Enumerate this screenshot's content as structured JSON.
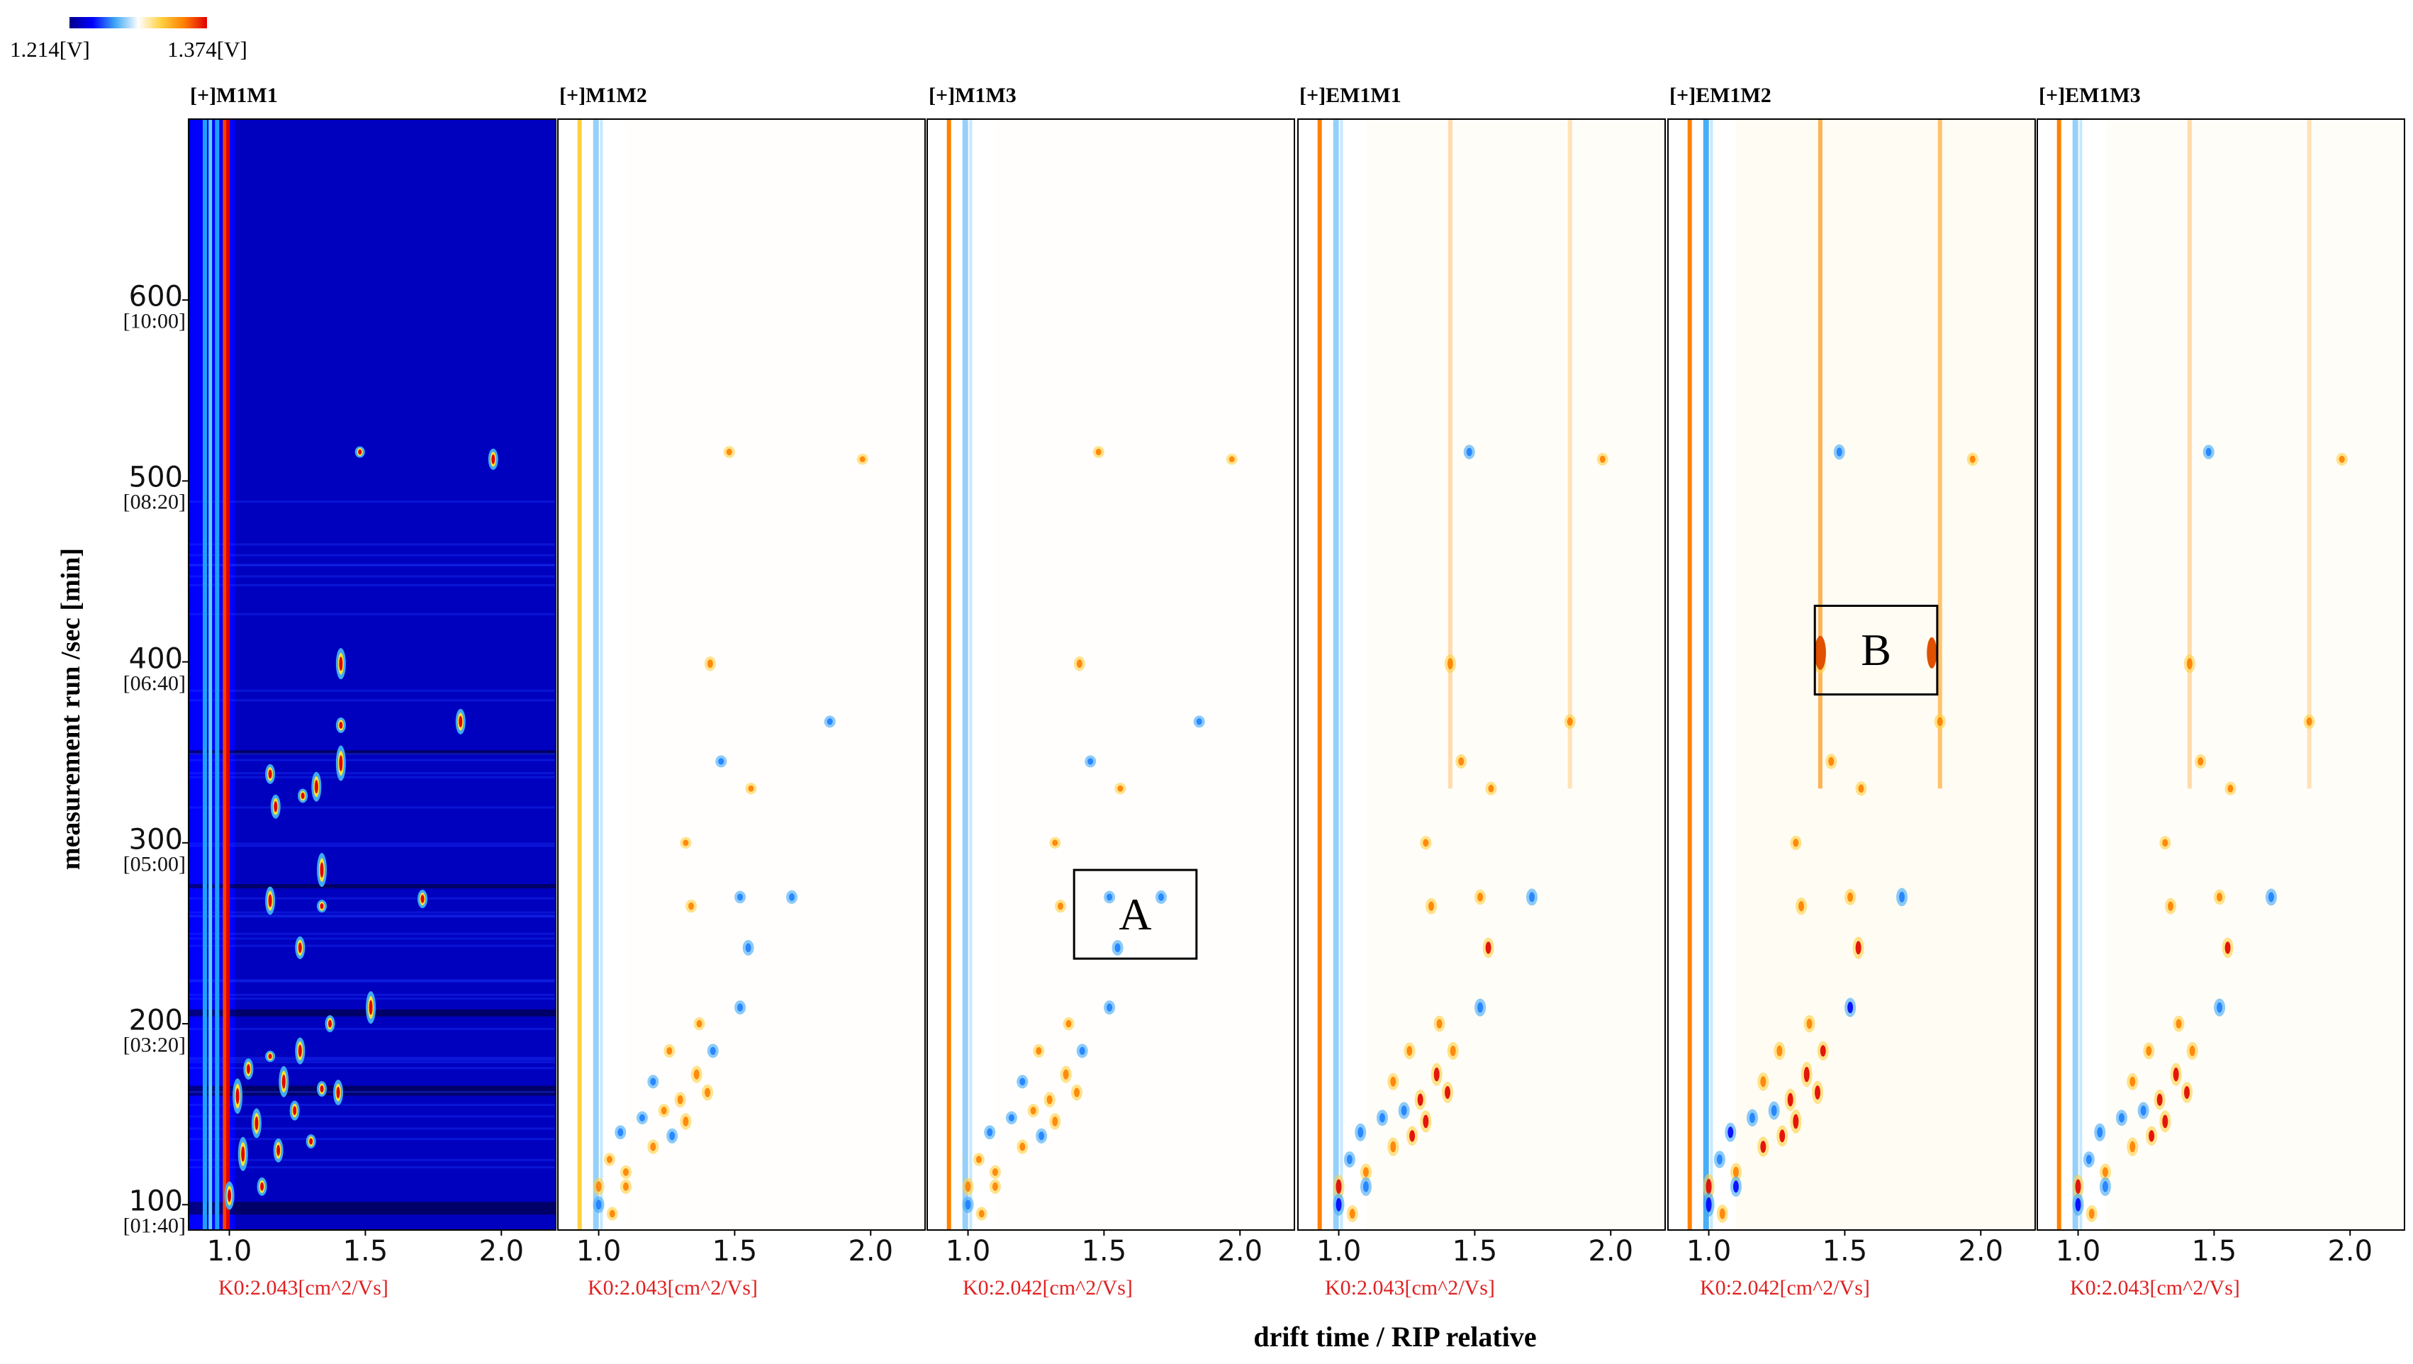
{
  "colorbar": {
    "min_label": "1.214[V]",
    "max_label": "1.374[V]",
    "colors": [
      "#00008b",
      "#0000ff",
      "#3fa9f5",
      "#ffffff",
      "#ffd040",
      "#ff8000",
      "#e00000"
    ]
  },
  "chart_data": {
    "type": "heatmap",
    "title": "",
    "xlabel": "drift time / RIP  relative",
    "ylabel": "measurement run /sec [min]",
    "xlim": [
      0.85,
      2.2
    ],
    "ylim": [
      86,
      700
    ],
    "xticks": [
      {
        "value": 1.0,
        "label": "1.0"
      },
      {
        "value": 1.5,
        "label": "1.5"
      },
      {
        "value": 2.0,
        "label": "2.0"
      }
    ],
    "yticks": [
      {
        "value": 100,
        "label": "100",
        "time": "[01:40]"
      },
      {
        "value": 200,
        "label": "200",
        "time": "[03:20]"
      },
      {
        "value": 300,
        "label": "300",
        "time": "[05:00]"
      },
      {
        "value": 400,
        "label": "400",
        "time": "[06:40]"
      },
      {
        "value": 500,
        "label": "500",
        "time": "[08:20]"
      },
      {
        "value": 600,
        "label": "600",
        "time": "[10:00]"
      }
    ],
    "panels": [
      {
        "name": "[+]M1M1",
        "k0": "K0:2.043[cm^2/Vs]",
        "style": "reference"
      },
      {
        "name": "[+]M1M2",
        "k0": "K0:2.043[cm^2/Vs]",
        "style": "difference"
      },
      {
        "name": "[+]M1M3",
        "k0": "K0:2.042[cm^2/Vs]",
        "style": "difference"
      },
      {
        "name": "[+]EM1M1",
        "k0": "K0:2.043[cm^2/Vs]",
        "style": "difference"
      },
      {
        "name": "[+]EM1M2",
        "k0": "K0:2.042[cm^2/Vs]",
        "style": "difference"
      },
      {
        "name": "[+]EM1M3",
        "k0": "K0:2.043[cm^2/Vs]",
        "style": "difference"
      }
    ],
    "annotations": [
      {
        "label": "A",
        "panel": 2,
        "x_range": [
          1.39,
          1.84
        ],
        "y_range": [
          236,
          285
        ]
      },
      {
        "label": "B",
        "panel": 4,
        "x_range": [
          1.39,
          1.84
        ],
        "y_range": [
          382,
          431
        ]
      }
    ],
    "reference_peaks": [
      {
        "x": 1.48,
        "y": 516
      },
      {
        "x": 1.97,
        "y": 512
      },
      {
        "x": 1.41,
        "y": 399
      },
      {
        "x": 1.41,
        "y": 365
      },
      {
        "x": 1.85,
        "y": 367
      },
      {
        "x": 1.41,
        "y": 344
      },
      {
        "x": 1.15,
        "y": 338
      },
      {
        "x": 1.32,
        "y": 331
      },
      {
        "x": 1.27,
        "y": 326
      },
      {
        "x": 1.17,
        "y": 320
      },
      {
        "x": 1.34,
        "y": 285
      },
      {
        "x": 1.71,
        "y": 269
      },
      {
        "x": 1.15,
        "y": 268
      },
      {
        "x": 1.34,
        "y": 265
      },
      {
        "x": 1.26,
        "y": 242
      },
      {
        "x": 1.52,
        "y": 209
      },
      {
        "x": 1.37,
        "y": 200
      },
      {
        "x": 1.26,
        "y": 185
      },
      {
        "x": 1.15,
        "y": 182
      },
      {
        "x": 1.07,
        "y": 175
      },
      {
        "x": 1.2,
        "y": 168
      },
      {
        "x": 1.34,
        "y": 164
      },
      {
        "x": 1.4,
        "y": 162
      },
      {
        "x": 1.03,
        "y": 160
      },
      {
        "x": 1.24,
        "y": 152
      },
      {
        "x": 1.1,
        "y": 145
      },
      {
        "x": 1.3,
        "y": 135
      },
      {
        "x": 1.18,
        "y": 130
      },
      {
        "x": 1.05,
        "y": 128
      },
      {
        "x": 1.12,
        "y": 110
      },
      {
        "x": 1.0,
        "y": 105
      }
    ],
    "difference_spots": [
      {
        "x": 1.45,
        "y": 345,
        "sign": 1,
        "mag": 0.35
      },
      {
        "x": 1.56,
        "y": 330,
        "sign": 1,
        "mag": 0.3
      },
      {
        "x": 1.32,
        "y": 300,
        "sign": 1,
        "mag": 0.3
      },
      {
        "x": 1.52,
        "y": 270,
        "sign": 1,
        "mag": 0.4
      },
      {
        "x": 1.71,
        "y": 270,
        "sign": -1,
        "mag": 0.5
      },
      {
        "x": 1.34,
        "y": 265,
        "sign": 1,
        "mag": 0.45
      },
      {
        "x": 1.55,
        "y": 242,
        "sign": 1,
        "mag": 0.7
      },
      {
        "x": 1.52,
        "y": 209,
        "sign": -1,
        "mag": 0.55
      },
      {
        "x": 1.37,
        "y": 200,
        "sign": 1,
        "mag": 0.45
      },
      {
        "x": 1.42,
        "y": 185,
        "sign": 1,
        "mag": 0.55
      },
      {
        "x": 1.26,
        "y": 185,
        "sign": 1,
        "mag": 0.5
      },
      {
        "x": 1.36,
        "y": 172,
        "sign": 1,
        "mag": 0.85
      },
      {
        "x": 1.2,
        "y": 168,
        "sign": 1,
        "mag": 0.5
      },
      {
        "x": 1.4,
        "y": 162,
        "sign": 1,
        "mag": 0.75
      },
      {
        "x": 1.3,
        "y": 158,
        "sign": 1,
        "mag": 0.7
      },
      {
        "x": 1.24,
        "y": 152,
        "sign": -1,
        "mag": 0.5
      },
      {
        "x": 1.32,
        "y": 146,
        "sign": 1,
        "mag": 0.8
      },
      {
        "x": 1.16,
        "y": 148,
        "sign": -1,
        "mag": 0.45
      },
      {
        "x": 1.27,
        "y": 138,
        "sign": 1,
        "mag": 0.65
      },
      {
        "x": 1.08,
        "y": 140,
        "sign": -1,
        "mag": 0.55
      },
      {
        "x": 1.2,
        "y": 132,
        "sign": 1,
        "mag": 0.6
      },
      {
        "x": 1.04,
        "y": 125,
        "sign": -1,
        "mag": 0.45
      },
      {
        "x": 1.1,
        "y": 118,
        "sign": 1,
        "mag": 0.5
      },
      {
        "x": 1.0,
        "y": 110,
        "sign": 1,
        "mag": 0.9
      },
      {
        "x": 1.1,
        "y": 110,
        "sign": -1,
        "mag": 0.6
      },
      {
        "x": 1.0,
        "y": 100,
        "sign": -1,
        "mag": 0.8
      },
      {
        "x": 1.05,
        "y": 95,
        "sign": 1,
        "mag": 0.5
      },
      {
        "x": 1.48,
        "y": 516,
        "sign": -1,
        "mag": 0.35
      },
      {
        "x": 1.97,
        "y": 512,
        "sign": 1,
        "mag": 0.25
      },
      {
        "x": 1.41,
        "y": 399,
        "sign": 1,
        "mag": 0.6
      },
      {
        "x": 1.85,
        "y": 367,
        "sign": 1,
        "mag": 0.35
      }
    ]
  }
}
